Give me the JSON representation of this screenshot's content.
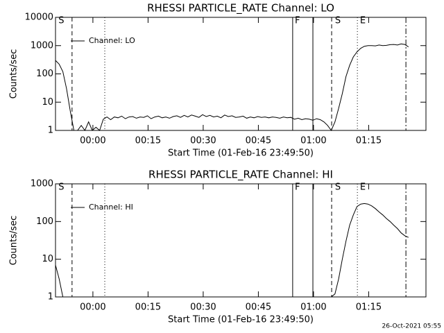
{
  "chart_data": [
    {
      "type": "line",
      "title": "RHESSI PARTICLE_RATE Channel: LO",
      "x_label": "Start Time (01-Feb-16 23:49:50)",
      "y_label": "Counts/sec",
      "log_y": true,
      "legend": "upper left",
      "xlim": [
        0,
        100.75
      ],
      "ylim": [
        1,
        10000
      ],
      "xticks": [
        {
          "value": 10.17,
          "label": "00:00"
        },
        {
          "value": 25.17,
          "label": "00:15"
        },
        {
          "value": 40.17,
          "label": "00:30"
        },
        {
          "value": 55.17,
          "label": "00:45"
        },
        {
          "value": 70.17,
          "label": "01:00"
        },
        {
          "value": 85.17,
          "label": "01:15"
        }
      ],
      "yticks": [
        1,
        10,
        100,
        1000,
        10000
      ],
      "vlines": [
        {
          "x": 4.5,
          "style": "dashed"
        },
        {
          "x": 13.4,
          "style": "dotted"
        },
        {
          "x": 64.5,
          "style": "solid"
        },
        {
          "x": 70,
          "style": "solid"
        },
        {
          "x": 75.1,
          "style": "dashed"
        },
        {
          "x": 82.1,
          "style": "dotted"
        },
        {
          "x": 95.3,
          "style": "dashdot"
        }
      ],
      "annotations": [
        {
          "text": "S",
          "x": 0.8
        },
        {
          "text": "F",
          "x": 65.1
        },
        {
          "text": "S",
          "x": 76
        },
        {
          "text": "E",
          "x": 82.8
        }
      ],
      "series": [
        {
          "name": "Channel: LO",
          "color": "#000000",
          "x": [
            0,
            1,
            2,
            3,
            4,
            5,
            6,
            7,
            8,
            9,
            10,
            11,
            12,
            13,
            14,
            15,
            16,
            17,
            18,
            19,
            20,
            21,
            22,
            23,
            24,
            25,
            26,
            27,
            28,
            29,
            30,
            31,
            32,
            33,
            34,
            35,
            36,
            37,
            38,
            39,
            40,
            41,
            42,
            43,
            44,
            45,
            46,
            47,
            48,
            49,
            50,
            51,
            52,
            53,
            54,
            55,
            56,
            57,
            58,
            59,
            60,
            61,
            62,
            63,
            64,
            65,
            66,
            67,
            68,
            69,
            70,
            71,
            72,
            73,
            74,
            75,
            76,
            77,
            78,
            79,
            80,
            81,
            82,
            83,
            84,
            85,
            86,
            87,
            88,
            89,
            90,
            91,
            92,
            93,
            94,
            95,
            96
          ],
          "values": [
            300,
            220,
            120,
            30,
            5,
            1,
            1,
            1.5,
            1,
            2,
            1,
            1.3,
            1,
            2.5,
            3,
            2.4,
            3,
            2.8,
            3.2,
            2.6,
            3,
            3.1,
            2.7,
            3,
            2.9,
            3.3,
            2.6,
            3,
            3.2,
            2.8,
            3,
            2.7,
            3.1,
            3.3,
            2.9,
            3.4,
            3,
            3.5,
            3.2,
            2.9,
            3.6,
            3.1,
            3.4,
            3,
            3.2,
            2.8,
            3.5,
            3.1,
            3.3,
            2.9,
            3,
            3.2,
            2.7,
            3,
            2.8,
            3.1,
            2.9,
            3,
            2.8,
            3,
            2.9,
            2.7,
            3,
            2.8,
            2.9,
            2.5,
            2.7,
            2.4,
            2.6,
            2.5,
            2.3,
            2.6,
            2.4,
            2,
            1.5,
            1,
            2,
            6,
            20,
            80,
            200,
            400,
            600,
            800,
            950,
            1000,
            1000,
            980,
            1050,
            1000,
            1020,
            1080,
            1100,
            1050,
            1150,
            1100,
            900
          ]
        }
      ]
    },
    {
      "type": "line",
      "title": "RHESSI PARTICLE_RATE Channel: HI",
      "x_label": "Start Time (01-Feb-16 23:49:50)",
      "y_label": "Counts/sec",
      "log_y": true,
      "legend": "upper left",
      "xlim": [
        0,
        100.75
      ],
      "ylim": [
        1,
        1000
      ],
      "xticks": [
        {
          "value": 10.17,
          "label": "00:00"
        },
        {
          "value": 25.17,
          "label": "00:15"
        },
        {
          "value": 40.17,
          "label": "00:30"
        },
        {
          "value": 55.17,
          "label": "00:45"
        },
        {
          "value": 70.17,
          "label": "01:00"
        },
        {
          "value": 85.17,
          "label": "01:15"
        }
      ],
      "yticks": [
        1,
        10,
        100,
        1000
      ],
      "vlines": [
        {
          "x": 4.5,
          "style": "dashed"
        },
        {
          "x": 13.4,
          "style": "dotted"
        },
        {
          "x": 64.5,
          "style": "solid"
        },
        {
          "x": 70,
          "style": "solid"
        },
        {
          "x": 75.1,
          "style": "dashed"
        },
        {
          "x": 82.1,
          "style": "dotted"
        },
        {
          "x": 95.3,
          "style": "dashdot"
        }
      ],
      "annotations": [
        {
          "text": "S",
          "x": 0.8
        },
        {
          "text": "F",
          "x": 65.1
        },
        {
          "text": "S",
          "x": 76
        },
        {
          "text": "E",
          "x": 82.8
        }
      ],
      "series": [
        {
          "name": "Channel: HI",
          "color": "#000000",
          "x": [
            0,
            1,
            2,
            3,
            75,
            76,
            77,
            78,
            79,
            80,
            81,
            82,
            83,
            84,
            85,
            86,
            87,
            88,
            89,
            90,
            91,
            92,
            93,
            94,
            95,
            96
          ],
          "values": [
            7,
            3,
            1,
            1,
            1,
            1.2,
            3,
            10,
            30,
            80,
            150,
            250,
            290,
            300,
            290,
            260,
            220,
            180,
            150,
            120,
            100,
            80,
            65,
            50,
            42,
            38
          ]
        }
      ]
    }
  ],
  "footer_text": "26-Oct-2021 05:55"
}
